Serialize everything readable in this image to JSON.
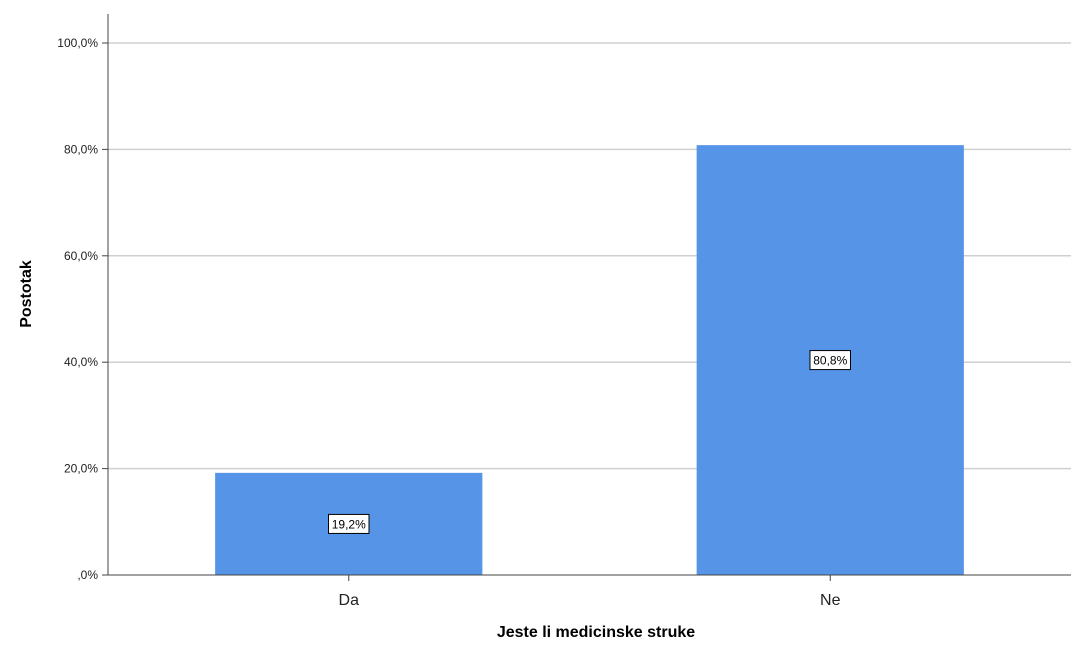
{
  "chart_data": {
    "type": "bar",
    "categories": [
      "Da",
      "Ne"
    ],
    "values": [
      19.2,
      80.8
    ],
    "data_labels": [
      "19,2%",
      "80,8%"
    ],
    "xlabel": "Jeste li medicinske struke",
    "ylabel": "Postotak",
    "ylim": [
      0,
      100
    ],
    "yticks": [
      0,
      20,
      40,
      60,
      80,
      100
    ],
    "ytick_labels": [
      ",0%",
      "20,0%",
      "40,0%",
      "60,0%",
      "80,0%",
      "100,0%"
    ],
    "grid": true,
    "legend": "none",
    "bar_color": "#5594e6",
    "grid_color": "#d0d0d0",
    "axis_color": "#444444"
  }
}
